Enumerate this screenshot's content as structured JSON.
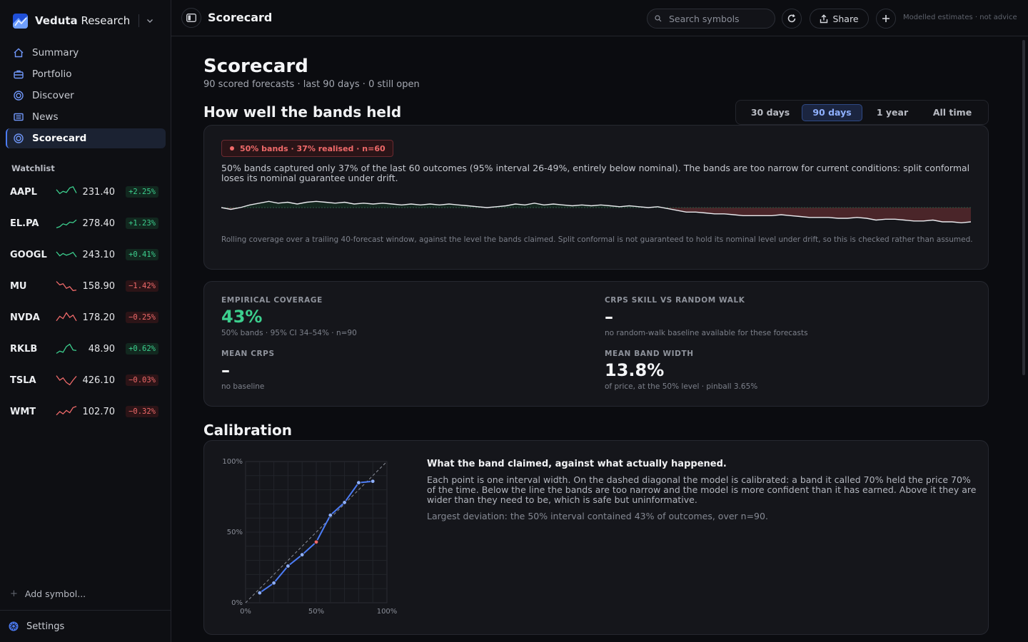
{
  "app": {
    "brand_bold": "Veduta",
    "brand_rest": " Research"
  },
  "nav": {
    "items": [
      {
        "label": "Summary",
        "icon": "home-icon"
      },
      {
        "label": "Portfolio",
        "icon": "briefcase-icon"
      },
      {
        "label": "Discover",
        "icon": "target-icon"
      },
      {
        "label": "News",
        "icon": "newspaper-icon"
      },
      {
        "label": "Scorecard",
        "icon": "target-icon",
        "active": true
      }
    ]
  },
  "watchlist": {
    "title": "Watchlist",
    "items": [
      {
        "symbol": "AAPL",
        "price": "231.40",
        "change": "+2.25%",
        "trend": "up",
        "spark": [
          0.7,
          0.35,
          0.55,
          0.45,
          0.85,
          0.95,
          0.4
        ]
      },
      {
        "symbol": "EL.PA",
        "price": "278.40",
        "change": "+1.23%",
        "trend": "up",
        "spark": [
          0.1,
          0.2,
          0.45,
          0.35,
          0.6,
          0.55,
          0.8
        ]
      },
      {
        "symbol": "GOOGL",
        "price": "243.10",
        "change": "+0.41%",
        "trend": "up",
        "spark": [
          0.75,
          0.4,
          0.6,
          0.45,
          0.55,
          0.7,
          0.3
        ]
      },
      {
        "symbol": "MU",
        "price": "158.90",
        "change": "−1.42%",
        "trend": "down",
        "spark": [
          0.9,
          0.6,
          0.7,
          0.3,
          0.45,
          0.1,
          0.15
        ]
      },
      {
        "symbol": "NVDA",
        "price": "178.20",
        "change": "−0.25%",
        "trend": "down",
        "spark": [
          0.2,
          0.6,
          0.4,
          0.9,
          0.5,
          0.7,
          0.2
        ]
      },
      {
        "symbol": "RKLB",
        "price": "48.90",
        "change": "+0.62%",
        "trend": "up",
        "spark": [
          0.1,
          0.3,
          0.2,
          0.7,
          0.9,
          0.4,
          0.35
        ]
      },
      {
        "symbol": "TSLA",
        "price": "426.10",
        "change": "−0.03%",
        "trend": "down",
        "spark": [
          0.9,
          0.5,
          0.7,
          0.3,
          0.1,
          0.5,
          0.85
        ]
      },
      {
        "symbol": "WMT",
        "price": "102.70",
        "change": "−0.32%",
        "trend": "down",
        "spark": [
          0.2,
          0.5,
          0.3,
          0.6,
          0.4,
          0.85,
          0.95
        ]
      }
    ],
    "add_label": "Add symbol..."
  },
  "settings_label": "Settings",
  "topbar": {
    "title": "Scorecard",
    "search_placeholder": "Search symbols",
    "share_label": "Share",
    "note": "Modelled estimates · not advice"
  },
  "page": {
    "title": "Scorecard",
    "subtitle": "90 scored forecasts · last 90 days · 0 still open"
  },
  "bands": {
    "heading": "How well the bands held",
    "range_tabs": [
      "30 days",
      "90 days",
      "1 year",
      "All time"
    ],
    "active_tab": "90 days",
    "badge": "50% bands · 37% realised · n=60",
    "text": "50% bands captured only 37% of the last 60 outcomes (95% interval 26-49%, entirely below nominal). The bands are too narrow for current conditions: split conformal loses its nominal guarantee under drift.",
    "caption": "Rolling coverage over a trailing 40-forecast window, against the level the bands claimed. Split conformal is not guaranteed to hold its nominal level under drift, so this is checked rather than assumed.",
    "nominal": 0.5,
    "rolling_coverage": [
      0.5,
      0.49,
      0.5,
      0.515,
      0.525,
      0.535,
      0.525,
      0.53,
      0.52,
      0.53,
      0.535,
      0.53,
      0.525,
      0.53,
      0.52,
      0.525,
      0.52,
      0.525,
      0.52,
      0.515,
      0.52,
      0.515,
      0.52,
      0.515,
      0.52,
      0.515,
      0.51,
      0.505,
      0.5,
      0.505,
      0.51,
      0.52,
      0.515,
      0.525,
      0.515,
      0.52,
      0.515,
      0.51,
      0.515,
      0.51,
      0.515,
      0.51,
      0.505,
      0.51,
      0.505,
      0.5,
      0.505,
      0.495,
      0.485,
      0.475,
      0.475,
      0.47,
      0.465,
      0.465,
      0.46,
      0.455,
      0.455,
      0.455,
      0.455,
      0.46,
      0.455,
      0.45,
      0.445,
      0.445,
      0.445,
      0.44,
      0.44,
      0.445,
      0.44,
      0.43,
      0.435,
      0.435,
      0.43,
      0.425,
      0.425,
      0.43,
      0.42,
      0.42,
      0.415,
      0.42
    ]
  },
  "metrics": {
    "empirical_coverage": {
      "label": "EMPIRICAL COVERAGE",
      "value": "43%",
      "sub": "50% bands · 95% CI 34–54% · n=90"
    },
    "crps_skill": {
      "label": "CRPS SKILL VS RANDOM WALK",
      "value": "–",
      "sub": "no random-walk baseline available for these forecasts"
    },
    "mean_crps": {
      "label": "MEAN CRPS",
      "value": "–",
      "sub": "no baseline"
    },
    "mean_band_width": {
      "label": "MEAN BAND WIDTH",
      "value": "13.8%",
      "sub": "of price, at the 50% level · pinball 3.65%"
    }
  },
  "calibration": {
    "heading": "Calibration",
    "title": "What the band claimed, against what actually happened.",
    "text": "Each point is one interval width. On the dashed diagonal the model is calibrated: a band it called 70% held the price 70% of the time. Below the line the bands are too narrow and the model is more confident than it has earned. Above it they are wider than they need to be, which is safe but uninformative.",
    "note": "Largest deviation: the 50% interval contained 43% of outcomes, over n=90.",
    "x_ticks": [
      "0%",
      "50%",
      "100%"
    ],
    "y_ticks": [
      "100%",
      "50%",
      "0%"
    ]
  },
  "chart_data": {
    "type": "scatter",
    "x": [
      10,
      20,
      30,
      40,
      50,
      60,
      70,
      80,
      90
    ],
    "y": [
      7,
      14,
      26,
      34,
      43,
      62,
      71,
      85,
      86
    ],
    "highlight_index": 4,
    "xlim": [
      0,
      100
    ],
    "ylim": [
      0,
      100
    ],
    "reference": "dashed diagonal y = x",
    "colors": {
      "line": "#4c7cf6",
      "highlight": "#f06a6a",
      "diagonal": "#8a8e98"
    }
  }
}
